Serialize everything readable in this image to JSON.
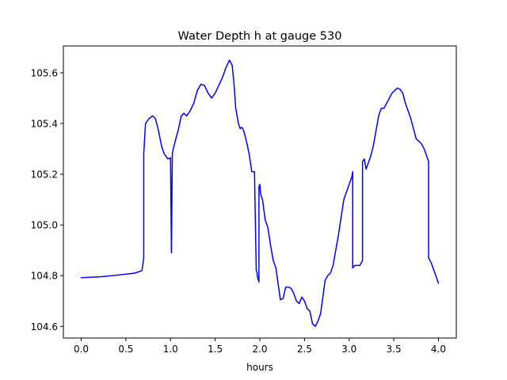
{
  "chart_data": {
    "type": "line",
    "title": "Water Depth h at gauge 530",
    "xlabel": "hours",
    "ylabel": "",
    "xlim": [
      -0.2,
      4.2
    ],
    "ylim": [
      104.554,
      105.706
    ],
    "xticks": [
      0.0,
      0.5,
      1.0,
      1.5,
      2.0,
      2.5,
      3.0,
      3.5,
      4.0
    ],
    "xtick_labels": [
      "0.0",
      "0.5",
      "1.0",
      "1.5",
      "2.0",
      "2.5",
      "3.0",
      "3.5",
      "4.0"
    ],
    "yticks": [
      104.6,
      104.8,
      105.0,
      105.2,
      105.4,
      105.6
    ],
    "ytick_labels": [
      "104.6",
      "104.8",
      "105.0",
      "105.2",
      "105.4",
      "105.6"
    ],
    "grid": false,
    "legend": "none",
    "series": [
      {
        "color": "#0000ff",
        "x": [
          0.0,
          0.2,
          0.4,
          0.6,
          0.68,
          0.7,
          0.7,
          0.72,
          0.76,
          0.8,
          0.83,
          0.86,
          0.9,
          0.93,
          0.97,
          1.0,
          1.01,
          1.02,
          1.02,
          1.03,
          1.06,
          1.09,
          1.12,
          1.15,
          1.18,
          1.22,
          1.26,
          1.3,
          1.34,
          1.38,
          1.42,
          1.46,
          1.5,
          1.54,
          1.58,
          1.62,
          1.66,
          1.69,
          1.71,
          1.73,
          1.76,
          1.78,
          1.8,
          1.82,
          1.85,
          1.88,
          1.91,
          1.94,
          1.96,
          1.97,
          1.97,
          1.99,
          1.99,
          2.0,
          2.01,
          2.03,
          2.06,
          2.09,
          2.12,
          2.15,
          2.18,
          2.2,
          2.23,
          2.26,
          2.29,
          2.32,
          2.35,
          2.38,
          2.41,
          2.44,
          2.47,
          2.5,
          2.53,
          2.56,
          2.59,
          2.62,
          2.65,
          2.68,
          2.7,
          2.73,
          2.76,
          2.79,
          2.82,
          2.85,
          2.88,
          2.91,
          2.94,
          2.97,
          3.0,
          3.03,
          3.04,
          3.04,
          3.06,
          3.09,
          3.12,
          3.15,
          3.15,
          3.17,
          3.19,
          3.21,
          3.24,
          3.27,
          3.3,
          3.33,
          3.36,
          3.39,
          3.42,
          3.45,
          3.48,
          3.51,
          3.54,
          3.57,
          3.6,
          3.63,
          3.66,
          3.69,
          3.72,
          3.75,
          3.78,
          3.81,
          3.84,
          3.87,
          3.89,
          3.89,
          3.92,
          3.95,
          3.98,
          4.0
        ],
        "values": [
          104.792,
          104.795,
          104.802,
          104.81,
          104.82,
          104.87,
          105.28,
          105.4,
          105.42,
          105.43,
          105.42,
          105.38,
          105.31,
          105.28,
          105.26,
          105.265,
          104.89,
          105.27,
          105.28,
          105.3,
          105.34,
          105.38,
          105.43,
          105.44,
          105.43,
          105.45,
          105.48,
          105.53,
          105.555,
          105.55,
          105.52,
          105.5,
          105.52,
          105.55,
          105.58,
          105.62,
          105.65,
          105.63,
          105.56,
          105.46,
          105.4,
          105.38,
          105.385,
          105.37,
          105.33,
          105.28,
          105.21,
          105.21,
          104.82,
          104.81,
          104.8,
          104.775,
          105.15,
          105.16,
          105.12,
          105.1,
          105.02,
          104.99,
          104.92,
          104.86,
          104.83,
          104.78,
          104.705,
          104.71,
          104.755,
          104.755,
          104.75,
          104.73,
          104.7,
          104.69,
          104.715,
          104.7,
          104.67,
          104.66,
          104.61,
          104.6,
          104.62,
          104.65,
          104.7,
          104.78,
          104.8,
          104.81,
          104.84,
          104.9,
          104.96,
          105.03,
          105.1,
          105.13,
          105.16,
          105.19,
          105.21,
          104.83,
          104.84,
          104.84,
          104.84,
          104.86,
          105.25,
          105.26,
          105.22,
          105.24,
          105.27,
          105.31,
          105.37,
          105.43,
          105.46,
          105.46,
          105.48,
          105.5,
          105.52,
          105.53,
          105.54,
          105.535,
          105.52,
          105.48,
          105.45,
          105.42,
          105.38,
          105.34,
          105.33,
          105.32,
          105.3,
          105.27,
          105.25,
          104.87,
          104.85,
          104.82,
          104.79,
          104.77
        ]
      }
    ]
  }
}
